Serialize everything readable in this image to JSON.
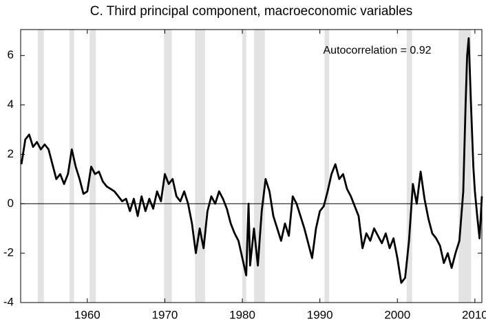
{
  "chart_data": {
    "type": "line",
    "title": "C. Third principal component, macroeconomic variables",
    "annotation": "Autocorrelation = 0.92",
    "x": [
      1951.5,
      1952,
      1952.5,
      1953,
      1953.5,
      1954,
      1954.5,
      1955,
      1955.5,
      1956,
      1956.5,
      1957,
      1957.5,
      1958,
      1958.5,
      1959,
      1959.5,
      1960,
      1960.5,
      1961,
      1961.5,
      1962,
      1962.5,
      1963,
      1963.5,
      1964,
      1964.5,
      1965,
      1965.5,
      1966,
      1966.5,
      1967,
      1967.5,
      1968,
      1968.5,
      1969,
      1969.5,
      1970,
      1970.5,
      1971,
      1971.5,
      1972,
      1972.5,
      1973,
      1973.5,
      1974,
      1974.5,
      1975,
      1975.5,
      1976,
      1976.5,
      1977,
      1977.5,
      1978,
      1978.5,
      1979,
      1979.5,
      1980,
      1980.5,
      1980.8,
      1981,
      1981.5,
      1982,
      1982.5,
      1983,
      1983.5,
      1984,
      1984.5,
      1985,
      1985.5,
      1986,
      1986.5,
      1987,
      1987.5,
      1988,
      1988.5,
      1989,
      1989.5,
      1990,
      1990.5,
      1991,
      1991.5,
      1992,
      1992.5,
      1993,
      1993.5,
      1994,
      1994.5,
      1995,
      1995.5,
      1996,
      1996.5,
      1997,
      1997.5,
      1998,
      1998.5,
      1999,
      1999.5,
      2000,
      2000.5,
      2001,
      2001.5,
      2002,
      2002.5,
      2003,
      2003.5,
      2004,
      2004.5,
      2005,
      2005.5,
      2006,
      2006.5,
      2007,
      2007.5,
      2008,
      2008.5,
      2008.8,
      2009,
      2009.2,
      2009.5,
      2009.8,
      2010,
      2010.3,
      2010.6,
      2010.9
    ],
    "series": [
      {
        "color": "#000000",
        "values": [
          1.6,
          2.6,
          2.8,
          2.3,
          2.5,
          2.2,
          2.4,
          2.2,
          1.6,
          1.0,
          1.2,
          0.8,
          1.2,
          2.2,
          1.5,
          1.0,
          0.4,
          0.5,
          1.5,
          1.2,
          1.3,
          0.9,
          0.7,
          0.6,
          0.5,
          0.3,
          0.1,
          0.2,
          -0.3,
          0.2,
          -0.5,
          0.3,
          -0.3,
          0.2,
          -0.2,
          0.5,
          0.1,
          1.2,
          0.8,
          1.0,
          0.3,
          0.1,
          0.5,
          0.0,
          -0.8,
          -2.0,
          -1.0,
          -1.8,
          -0.3,
          0.3,
          0.0,
          0.5,
          0.2,
          -0.2,
          -0.8,
          -1.2,
          -1.5,
          -2.2,
          -2.9,
          0.0,
          -2.5,
          -1.0,
          -2.5,
          -0.3,
          1.0,
          0.5,
          -0.5,
          -1.0,
          -1.5,
          -0.8,
          -1.3,
          0.3,
          0.0,
          -0.5,
          -1.0,
          -1.6,
          -2.2,
          -1.0,
          -0.3,
          -0.1,
          0.5,
          1.2,
          1.6,
          1.0,
          1.2,
          0.6,
          0.3,
          -0.1,
          -0.5,
          -1.8,
          -1.2,
          -1.5,
          -1.0,
          -1.3,
          -1.6,
          -1.2,
          -1.8,
          -1.4,
          -2.2,
          -3.2,
          -3.0,
          -1.5,
          0.8,
          0.0,
          1.3,
          0.2,
          -0.6,
          -1.2,
          -1.4,
          -1.7,
          -2.4,
          -2.0,
          -2.6,
          -2.0,
          -1.5,
          0.5,
          4.0,
          6.0,
          6.7,
          4.0,
          1.5,
          0.5,
          -0.5,
          -1.4,
          0.3
        ]
      }
    ],
    "shaded_periods": [
      [
        1953.6,
        1954.4
      ],
      [
        1957.7,
        1958.3
      ],
      [
        1960.3,
        1961.1
      ],
      [
        1969.9,
        1970.9
      ],
      [
        1973.9,
        1975.2
      ],
      [
        1980.0,
        1980.5
      ],
      [
        1981.5,
        1982.9
      ],
      [
        1990.6,
        1991.2
      ],
      [
        2001.2,
        2001.9
      ],
      [
        2007.9,
        2009.5
      ]
    ],
    "shade_color": "#e3e3e3",
    "hline": 0,
    "xlim": [
      1951.4,
      2010.9
    ],
    "xticks": [
      1960,
      1970,
      1980,
      1990,
      2000,
      2010
    ],
    "ylim": [
      -4,
      7.05
    ],
    "yticks": [
      -4,
      -2,
      0,
      2,
      4,
      6
    ]
  }
}
